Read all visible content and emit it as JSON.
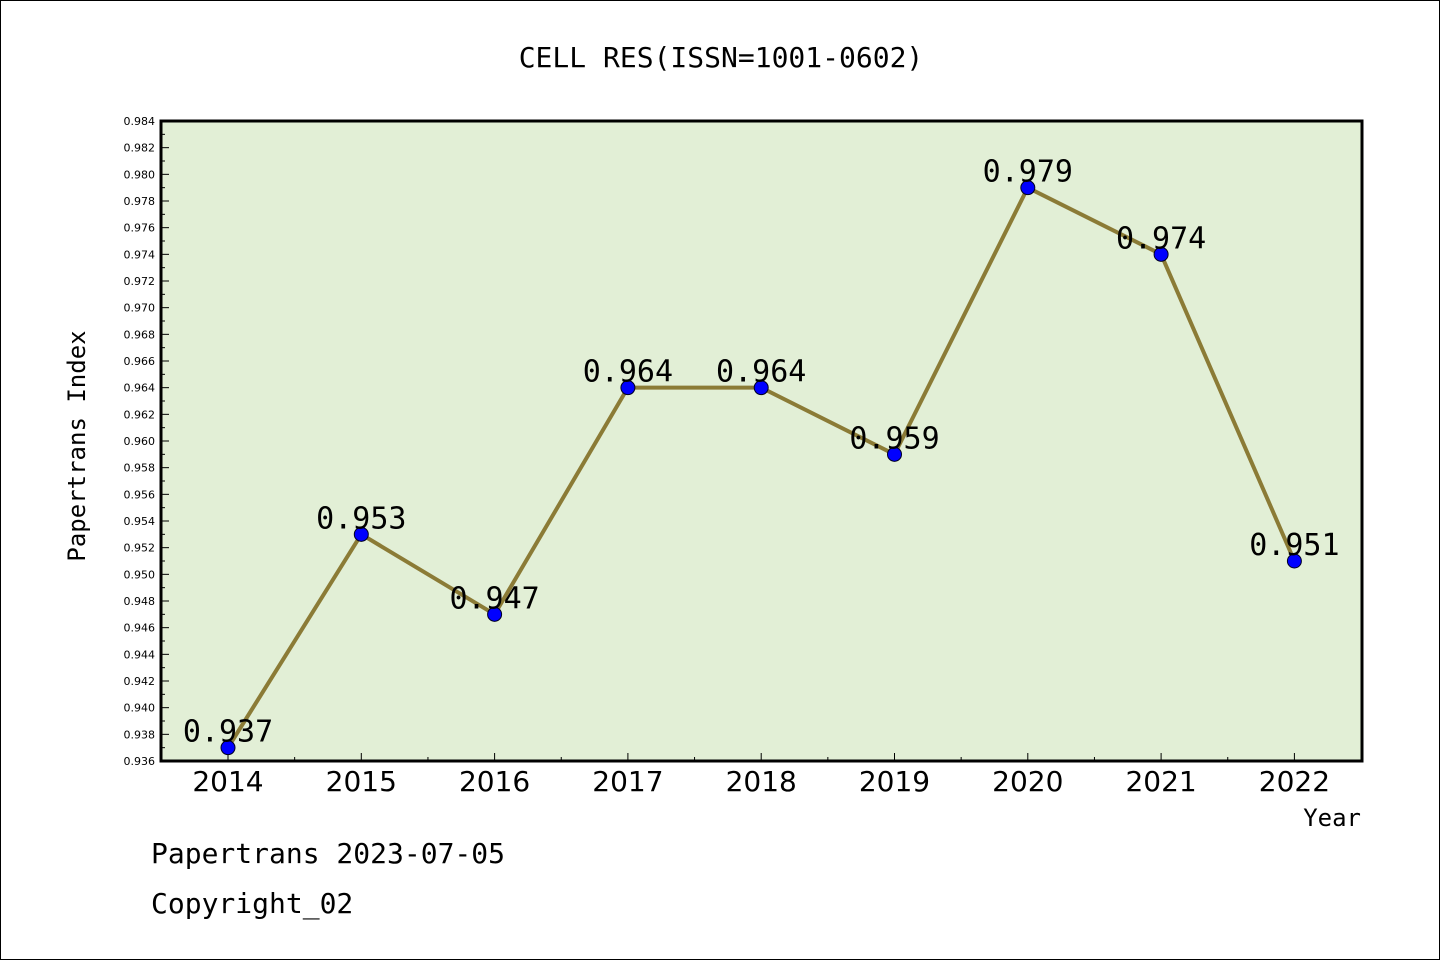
{
  "chart_data": {
    "type": "line",
    "title": "CELL RES(ISSN=1001-0602)",
    "xlabel": "Year",
    "ylabel": "Papertrans Index",
    "categories": [
      "2014",
      "2015",
      "2016",
      "2017",
      "2018",
      "2019",
      "2020",
      "2021",
      "2022"
    ],
    "series": [
      {
        "values": [
          0.937,
          0.953,
          0.947,
          0.964,
          0.964,
          0.959,
          0.979,
          0.974,
          0.951
        ]
      }
    ],
    "data_labels": [
      "0.937",
      "0.953",
      "0.947",
      "0.964",
      "0.964",
      "0.959",
      "0.979",
      "0.974",
      "0.951"
    ],
    "ylim": [
      0.936,
      0.984
    ],
    "ytick_step": 0.002,
    "y_tick_decimals": 3,
    "grid": false,
    "colors": {
      "line": "#8B7B36",
      "marker": "#0000FF",
      "plot_background": "#E2EFD6",
      "axis": "#000000"
    }
  },
  "footer": {
    "line1": "Papertrans 2023-07-05",
    "line2": "Copyright_02"
  }
}
